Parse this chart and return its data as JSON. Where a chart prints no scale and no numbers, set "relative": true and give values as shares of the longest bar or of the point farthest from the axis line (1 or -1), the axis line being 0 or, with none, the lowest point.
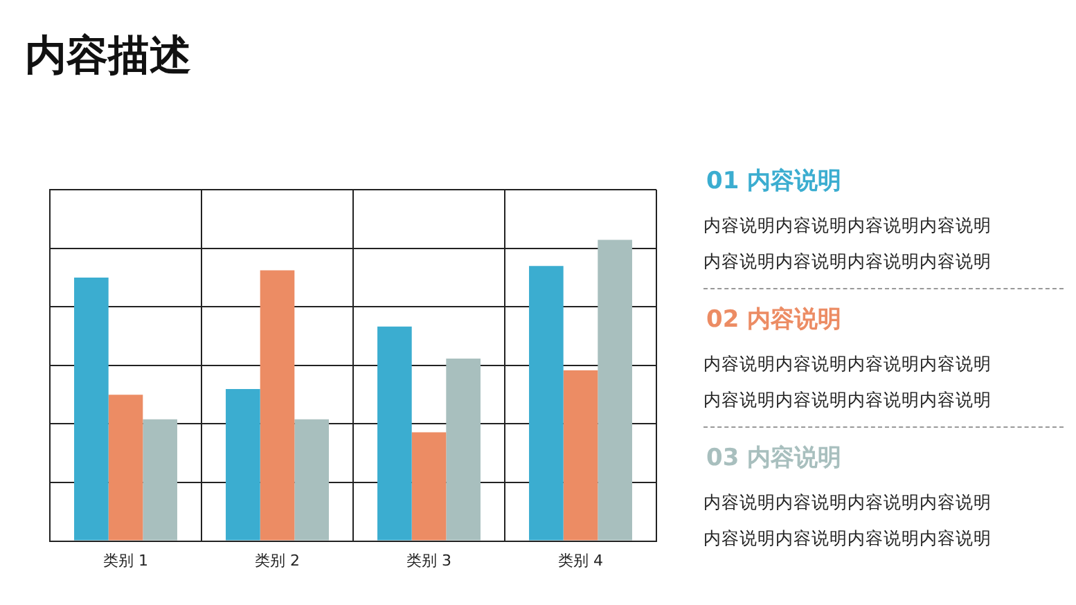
{
  "chart_data": {
    "type": "bar",
    "title": "内容描述",
    "relative": true,
    "grid": true,
    "categories": [
      "类别 1",
      "类别 2",
      "类别 3",
      "类别 4"
    ],
    "series": [
      {
        "color": "#3badd0",
        "values": [
          0.875,
          0.505,
          0.712,
          0.913
        ]
      },
      {
        "color": "#ec8c64",
        "values": [
          0.486,
          0.899,
          0.361,
          0.567
        ]
      },
      {
        "color": "#a8bfbe",
        "values": [
          0.404,
          0.404,
          0.606,
          1
        ]
      }
    ],
    "annotations": [
      "01 内容说明",
      "内容说明内容说明内容说明内容说明",
      "内容说明内容说明内容说明内容说明",
      "02 内容说明",
      "内容说明内容说明内容说明内容说明",
      "内容说明内容说明内容说明内容说明",
      "03 内容说明",
      "内容说明内容说明内容说明内容说明",
      "内容说明内容说明内容说明内容说明"
    ]
  }
}
